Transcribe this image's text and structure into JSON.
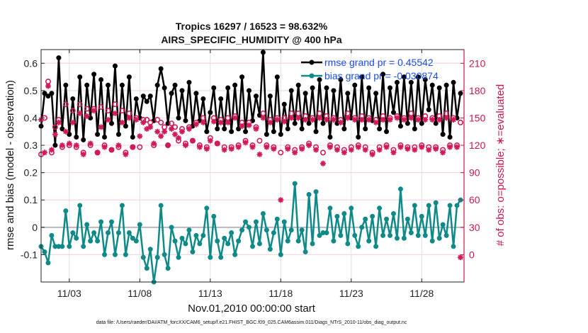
{
  "chart_data": {
    "type": "line",
    "title": "Tropics 16297 / 16523 = 98.632%",
    "subtitle": "AIRS_SPECIFIC_HUMIDITY @ 400 hPa",
    "xlabel": "Nov.01,2010 00:00:00 start",
    "ylabel": "rmse and bias (model - observation)",
    "ylabel_right": "# of obs: o=possible; ∗=evaluated",
    "xlim": [
      1,
      31
    ],
    "ylim": [
      -0.2,
      0.65
    ],
    "ylim_right": [
      -30,
      225
    ],
    "x_ticks": [
      3,
      8,
      13,
      18,
      23,
      28
    ],
    "x_tick_labels": [
      "11/03",
      "11/08",
      "11/13",
      "11/18",
      "11/23",
      "11/28"
    ],
    "y_ticks": [
      -0.1,
      0,
      0.1,
      0.2,
      0.3,
      0.4,
      0.5,
      0.6
    ],
    "y_tick_labels": [
      "-0.1",
      "0",
      "0.1",
      "0.2",
      "0.3",
      "0.4",
      "0.5",
      "0.6"
    ],
    "y_right_ticks": [
      0,
      30,
      60,
      90,
      120,
      150,
      180,
      210
    ],
    "y_right_tick_labels": [
      "0",
      "30",
      "60",
      "90",
      "120",
      "150",
      "180",
      "210"
    ],
    "grid": true,
    "legend": "top-right",
    "footnote": "data file: /Users/raeder/DAI/ATM_forcXX/CAM6_setup/f.e21.FHIST_BGC.f09_025.CAM6assim.011/Diags_NTrS_2010-11/obs_diag_output.nc",
    "series": [
      {
        "name": "rmse grand pr = 0.45542",
        "axis": "left",
        "color": "#000000",
        "x": [
          1.0,
          1.25,
          1.5,
          1.75,
          2.0,
          2.25,
          2.5,
          2.75,
          3.0,
          3.25,
          3.5,
          3.75,
          4.0,
          4.25,
          4.5,
          4.75,
          5.0,
          5.25,
          5.5,
          5.75,
          6.0,
          6.25,
          6.5,
          6.75,
          7.0,
          7.25,
          7.5,
          7.75,
          8.0,
          8.25,
          8.5,
          8.75,
          9.0,
          9.25,
          9.5,
          9.75,
          10.0,
          10.25,
          10.5,
          10.75,
          11.0,
          11.25,
          11.5,
          11.75,
          12.0,
          12.25,
          12.5,
          12.75,
          13.0,
          13.25,
          13.5,
          13.75,
          14.0,
          14.25,
          14.5,
          14.75,
          15.0,
          15.25,
          15.5,
          15.75,
          16.0,
          16.25,
          16.5,
          16.75,
          17.0,
          17.25,
          17.5,
          17.75,
          18.0,
          18.25,
          18.5,
          18.75,
          19.0,
          19.25,
          19.5,
          19.75,
          20.0,
          20.25,
          20.5,
          20.75,
          21.0,
          21.25,
          21.5,
          21.75,
          22.0,
          22.25,
          22.5,
          22.75,
          23.0,
          23.25,
          23.5,
          23.75,
          24.0,
          24.25,
          24.5,
          24.75,
          25.0,
          25.25,
          25.5,
          25.75,
          26.0,
          26.25,
          26.5,
          26.75,
          27.0,
          27.25,
          27.5,
          27.75,
          28.0,
          28.25,
          28.5,
          28.75,
          29.0,
          29.25,
          29.5,
          29.75,
          30.0,
          30.25,
          30.5,
          30.75
        ],
        "values": [
          0.37,
          0.49,
          0.48,
          0.49,
          0.3,
          0.62,
          0.36,
          0.52,
          0.34,
          0.47,
          0.33,
          0.55,
          0.32,
          0.52,
          0.4,
          0.56,
          0.34,
          0.54,
          0.33,
          0.52,
          0.38,
          0.59,
          0.34,
          0.52,
          0.37,
          0.55,
          0.33,
          0.47,
          0.4,
          0.48,
          0.46,
          0.48,
          0.39,
          0.52,
          0.58,
          0.51,
          0.38,
          0.49,
          0.52,
          0.4,
          0.5,
          0.39,
          0.53,
          0.37,
          0.49,
          0.39,
          0.47,
          0.35,
          0.42,
          0.51,
          0.36,
          0.47,
          0.36,
          0.51,
          0.35,
          0.52,
          0.36,
          0.55,
          0.35,
          0.5,
          0.39,
          0.48,
          0.41,
          0.64,
          0.34,
          0.48,
          0.35,
          0.55,
          0.34,
          0.45,
          0.36,
          0.5,
          0.38,
          0.52,
          0.36,
          0.49,
          0.38,
          0.51,
          0.35,
          0.54,
          0.38,
          0.51,
          0.33,
          0.5,
          0.38,
          0.54,
          0.36,
          0.49,
          0.4,
          0.52,
          0.33,
          0.55,
          0.36,
          0.51,
          0.39,
          0.49,
          0.36,
          0.56,
          0.35,
          0.51,
          0.42,
          0.53,
          0.37,
          0.55,
          0.38,
          0.53,
          0.36,
          0.55,
          0.38,
          0.54,
          0.43,
          0.52,
          0.38,
          0.51,
          0.34,
          0.52,
          0.33,
          0.53,
          0.4,
          0.49
        ]
      },
      {
        "name": "bias grand pr = -0.030874",
        "axis": "left",
        "color": "#0f8a88",
        "x": [
          1.0,
          1.25,
          1.5,
          1.75,
          2.0,
          2.25,
          2.5,
          2.75,
          3.0,
          3.25,
          3.5,
          3.75,
          4.0,
          4.25,
          4.5,
          4.75,
          5.0,
          5.25,
          5.5,
          5.75,
          6.0,
          6.25,
          6.5,
          6.75,
          7.0,
          7.25,
          7.5,
          7.75,
          8.0,
          8.25,
          8.5,
          8.75,
          9.0,
          9.25,
          9.5,
          9.75,
          10.0,
          10.25,
          10.5,
          10.75,
          11.0,
          11.25,
          11.5,
          11.75,
          12.0,
          12.25,
          12.5,
          12.75,
          13.0,
          13.25,
          13.5,
          13.75,
          14.0,
          14.25,
          14.5,
          14.75,
          15.0,
          15.25,
          15.5,
          15.75,
          16.0,
          16.25,
          16.5,
          16.75,
          17.0,
          17.25,
          17.5,
          17.75,
          18.0,
          18.25,
          18.5,
          18.75,
          19.0,
          19.25,
          19.5,
          19.75,
          20.0,
          20.25,
          20.5,
          20.75,
          21.0,
          21.25,
          21.5,
          21.75,
          22.0,
          22.25,
          22.5,
          22.75,
          23.0,
          23.25,
          23.5,
          23.75,
          24.0,
          24.25,
          24.5,
          24.75,
          25.0,
          25.25,
          25.5,
          25.75,
          26.0,
          26.25,
          26.5,
          26.75,
          27.0,
          27.25,
          27.5,
          27.75,
          28.0,
          28.25,
          28.5,
          28.75,
          29.0,
          29.25,
          29.5,
          29.75,
          30.0,
          30.25,
          30.5,
          30.75
        ],
        "values": [
          -0.07,
          -0.09,
          -0.13,
          -0.03,
          -0.07,
          -0.07,
          -0.07,
          0.06,
          -0.07,
          -0.02,
          -0.04,
          0.08,
          -0.07,
          0.01,
          -0.05,
          -0.02,
          -0.05,
          0.02,
          -0.1,
          -0.02,
          0.02,
          -0.1,
          -0.02,
          0.08,
          -0.1,
          -0.02,
          -0.04,
          -0.05,
          0.01,
          -0.11,
          -0.15,
          -0.08,
          -0.2,
          -0.11,
          0.08,
          -0.1,
          -0.15,
          0.0,
          -0.05,
          -0.11,
          -0.04,
          -0.06,
          -0.01,
          -0.09,
          -0.03,
          -0.06,
          -0.03,
          0.07,
          -0.11,
          0.04,
          -0.05,
          -0.11,
          -0.04,
          -0.06,
          -0.02,
          -0.1,
          -0.05,
          -0.01,
          0.02,
          0.0,
          -0.07,
          0.02,
          -0.06,
          0.05,
          -0.01,
          -0.08,
          -0.02,
          0.03,
          -0.1,
          0.02,
          -0.05,
          -0.01,
          0.16,
          -0.05,
          -0.01,
          -0.09,
          0.12,
          -0.06,
          0.13,
          -0.03,
          -0.02,
          -0.02,
          0.07,
          -0.05,
          0.04,
          -0.03,
          0.05,
          -0.06,
          0.07,
          -0.03,
          -0.07,
          0.0,
          0.03,
          -0.05,
          0.04,
          -0.07,
          0.07,
          -0.03,
          0.03,
          -0.03,
          0.05,
          -0.04,
          0.14,
          -0.04,
          0.03,
          -0.02,
          0.08,
          -0.03,
          0.04,
          -0.03,
          0.08,
          -0.05,
          0.09,
          -0.04,
          0.01,
          -0.03,
          0.08,
          -0.07,
          0.08,
          0.1
        ]
      },
      {
        "name": "possible",
        "axis": "right",
        "marker": "o",
        "color": "#d01a5a",
        "x": [
          1.0,
          1.25,
          1.5,
          1.75,
          2.0,
          2.25,
          2.5,
          2.75,
          3.0,
          3.25,
          3.5,
          3.75,
          4.0,
          4.25,
          4.5,
          4.75,
          5.0,
          5.25,
          5.5,
          5.75,
          6.0,
          6.25,
          6.5,
          6.75,
          7.0,
          7.25,
          7.5,
          7.75,
          8.0,
          8.25,
          8.5,
          8.75,
          9.0,
          9.25,
          9.5,
          9.75,
          10.0,
          10.25,
          10.5,
          10.75,
          11.0,
          11.25,
          11.5,
          11.75,
          12.0,
          12.25,
          12.5,
          12.75,
          13.0,
          13.25,
          13.5,
          13.75,
          14.0,
          14.25,
          14.5,
          14.75,
          15.0,
          15.25,
          15.5,
          15.75,
          16.0,
          16.25,
          16.5,
          16.75,
          17.0,
          17.25,
          17.5,
          17.75,
          18.0,
          18.25,
          18.5,
          18.75,
          19.0,
          19.25,
          19.5,
          19.75,
          20.0,
          20.25,
          20.5,
          20.75,
          21.0,
          21.25,
          21.5,
          21.75,
          22.0,
          22.25,
          22.5,
          22.75,
          23.0,
          23.25,
          23.5,
          23.75,
          24.0,
          24.25,
          24.5,
          24.75,
          25.0,
          25.25,
          25.5,
          25.75,
          26.0,
          26.25,
          26.5,
          26.75,
          27.0,
          27.25,
          27.5,
          27.75,
          28.0,
          28.25,
          28.5,
          28.75,
          29.0,
          29.25,
          29.5,
          29.75,
          30.0,
          30.25,
          30.5,
          30.75
        ],
        "values": [
          110,
          150,
          190,
          112,
          140,
          148,
          118,
          165,
          120,
          158,
          118,
          165,
          112,
          160,
          120,
          160,
          112,
          162,
          120,
          158,
          115,
          165,
          118,
          158,
          112,
          155,
          118,
          150,
          118,
          148,
          148,
          145,
          120,
          148,
          145,
          140,
          120,
          144,
          140,
          125,
          138,
          122,
          140,
          125,
          145,
          120,
          150,
          118,
          128,
          150,
          122,
          148,
          118,
          150,
          118,
          152,
          120,
          145,
          125,
          145,
          120,
          140,
          125,
          155,
          120,
          148,
          118,
          150,
          112,
          150,
          118,
          155,
          115,
          155,
          118,
          152,
          122,
          150,
          118,
          155,
          112,
          152,
          120,
          150,
          118,
          148,
          115,
          155,
          118,
          150,
          120,
          152,
          118,
          150,
          112,
          148,
          118,
          152,
          120,
          150,
          115,
          152,
          120,
          150,
          118,
          155,
          118,
          150,
          120,
          152,
          118,
          150,
          118,
          152,
          115,
          155,
          120,
          150,
          120,
          145
        ]
      },
      {
        "name": "evaluated",
        "axis": "right",
        "marker": "*",
        "color": "#d01a5a",
        "x": [
          1.0,
          1.25,
          1.5,
          1.75,
          2.0,
          2.25,
          2.5,
          2.75,
          3.0,
          3.25,
          3.5,
          3.75,
          4.0,
          4.25,
          4.5,
          4.75,
          5.0,
          5.25,
          5.5,
          5.75,
          6.0,
          6.25,
          6.5,
          6.75,
          7.0,
          7.25,
          7.5,
          7.75,
          8.0,
          8.25,
          8.5,
          8.75,
          9.0,
          9.25,
          9.5,
          9.75,
          10.0,
          10.25,
          10.5,
          10.75,
          11.0,
          11.25,
          11.5,
          11.75,
          12.0,
          12.25,
          12.5,
          12.75,
          13.0,
          13.25,
          13.5,
          13.75,
          14.0,
          14.25,
          14.5,
          14.75,
          15.0,
          15.25,
          15.5,
          15.75,
          16.0,
          16.25,
          16.5,
          16.75,
          17.0,
          17.25,
          17.5,
          17.75,
          18.0,
          18.25,
          18.5,
          18.75,
          19.0,
          19.25,
          19.5,
          19.75,
          20.0,
          20.25,
          20.5,
          20.75,
          21.0,
          21.25,
          21.5,
          21.75,
          22.0,
          22.25,
          22.5,
          22.75,
          23.0,
          23.25,
          23.5,
          23.75,
          24.0,
          24.25,
          24.5,
          24.75,
          25.0,
          25.25,
          25.5,
          25.75,
          26.0,
          26.25,
          26.5,
          26.75,
          27.0,
          27.25,
          27.5,
          27.75,
          28.0,
          28.25,
          28.5,
          28.75,
          29.0,
          29.25,
          29.5,
          29.75,
          30.0,
          30.25,
          30.5,
          30.75
        ],
        "values": [
          148,
          112,
          185,
          115,
          132,
          145,
          120,
          135,
          122,
          145,
          120,
          155,
          110,
          152,
          122,
          158,
          112,
          140,
          118,
          148,
          115,
          155,
          120,
          145,
          110,
          150,
          118,
          148,
          130,
          145,
          138,
          140,
          122,
          135,
          130,
          135,
          120,
          138,
          132,
          128,
          135,
          120,
          138,
          125,
          143,
          118,
          145,
          116,
          125,
          146,
          122,
          145,
          115,
          145,
          116,
          150,
          118,
          141,
          123,
          142,
          118,
          138,
          110,
          150,
          118,
          145,
          116,
          148,
          60,
          146,
          116,
          150,
          112,
          150,
          116,
          148,
          120,
          148,
          115,
          150,
          100,
          148,
          118,
          148,
          115,
          145,
          112,
          150,
          115,
          148,
          118,
          148,
          115,
          148,
          110,
          145,
          115,
          148,
          118,
          148,
          112,
          150,
          118,
          148,
          116,
          150,
          115,
          148,
          118,
          148,
          115,
          148,
          116,
          148,
          112,
          150,
          118,
          148,
          118,
          -3
        ]
      }
    ]
  }
}
